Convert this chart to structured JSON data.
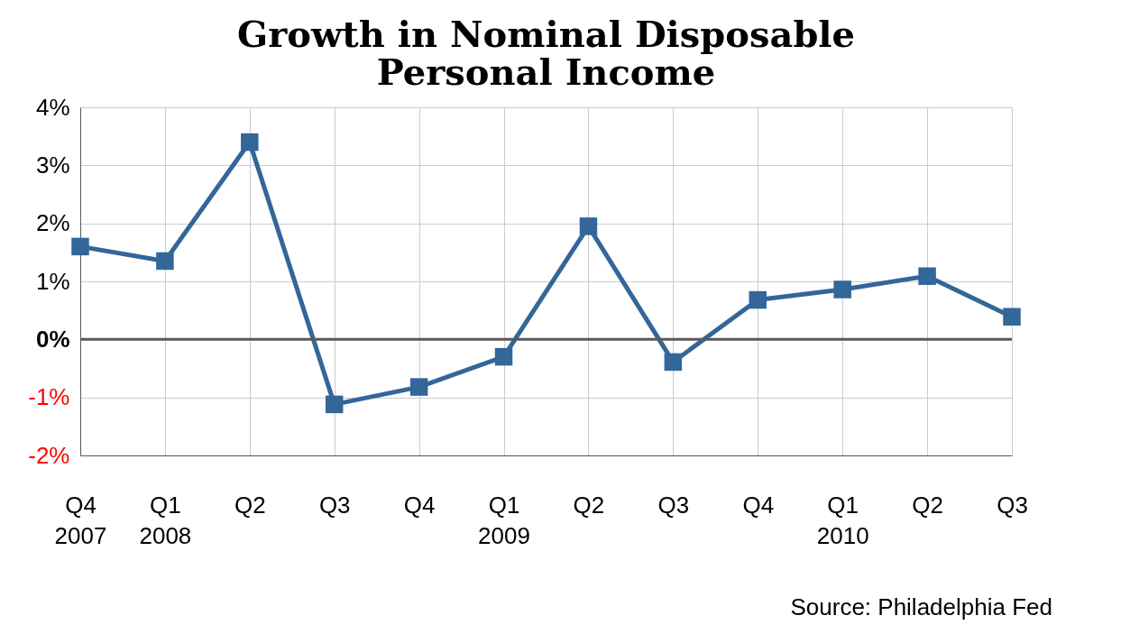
{
  "chart_data": {
    "type": "line",
    "title": "Growth in Nominal Disposable Personal Income",
    "categories": [
      "Q4\n2007",
      "Q1\n2008",
      "Q2",
      "Q3",
      "Q4",
      "Q1\n2009",
      "Q2",
      "Q3",
      "Q4",
      "Q1\n2010",
      "Q2",
      "Q3"
    ],
    "series": [
      {
        "color": "#336699",
        "values": [
          1.6,
          1.35,
          3.4,
          -1.12,
          -0.82,
          -0.3,
          1.95,
          -0.39,
          0.68,
          0.86,
          1.09,
          0.39
        ]
      }
    ],
    "ylim": [
      -2,
      4
    ],
    "yticks": [
      {
        "value": -2,
        "label": "-2%"
      },
      {
        "value": -1,
        "label": "-1%"
      },
      {
        "value": 0,
        "label": "0%"
      },
      {
        "value": 1,
        "label": "1%"
      },
      {
        "value": 2,
        "label": "2%"
      },
      {
        "value": 3,
        "label": "3%"
      },
      {
        "value": 4,
        "label": "4%"
      }
    ],
    "ref_lines": [
      {
        "axis": "y",
        "value": 0,
        "color": "#595959"
      }
    ],
    "grid": true,
    "marker": "square",
    "line_style": "solid",
    "annotations": [
      "Source: Philadelphia Fed"
    ]
  }
}
